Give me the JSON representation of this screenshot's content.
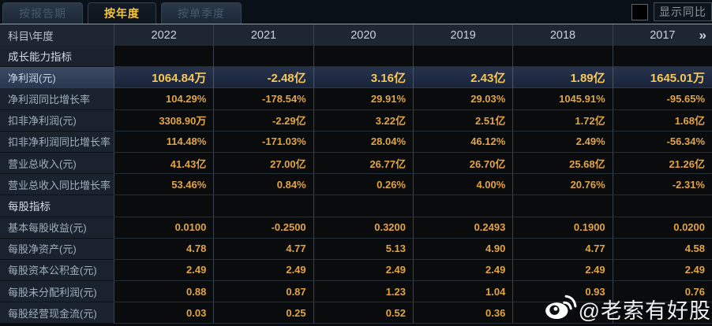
{
  "tabs": [
    {
      "label": "按报告期",
      "active": false
    },
    {
      "label": "按年度",
      "active": true
    },
    {
      "label": "按单季度",
      "active": false
    }
  ],
  "controls": {
    "show_yoy_label": "显示同比",
    "checkbox_checked": false
  },
  "table": {
    "corner_header": "科目\\年度",
    "year_columns": [
      "2022",
      "2021",
      "2020",
      "2019",
      "2018",
      "2017"
    ],
    "more_years_glyph": "»",
    "rows": [
      {
        "type": "section",
        "label": "成长能力指标",
        "values": [
          "",
          "",
          "",
          "",
          "",
          ""
        ]
      },
      {
        "type": "highlight",
        "label": "净利润(元)",
        "values": [
          "1064.84万",
          "-2.48亿",
          "3.16亿",
          "2.43亿",
          "1.89亿",
          "1645.01万"
        ]
      },
      {
        "type": "data",
        "label": "净利润同比增长率",
        "values": [
          "104.29%",
          "-178.54%",
          "29.91%",
          "29.03%",
          "1045.91%",
          "-95.65%"
        ]
      },
      {
        "type": "data",
        "label": "扣非净利润(元)",
        "values": [
          "3308.90万",
          "-2.29亿",
          "3.22亿",
          "2.51亿",
          "1.72亿",
          "1.68亿"
        ]
      },
      {
        "type": "data",
        "label": "扣非净利润同比增长率",
        "values": [
          "114.48%",
          "-171.03%",
          "28.04%",
          "46.12%",
          "2.49%",
          "-56.34%"
        ]
      },
      {
        "type": "data",
        "label": "营业总收入(元)",
        "values": [
          "41.43亿",
          "27.00亿",
          "26.77亿",
          "26.70亿",
          "25.68亿",
          "21.26亿"
        ]
      },
      {
        "type": "data",
        "label": "营业总收入同比增长率",
        "values": [
          "53.46%",
          "0.84%",
          "0.26%",
          "4.00%",
          "20.76%",
          "-2.31%"
        ]
      },
      {
        "type": "section",
        "label": "每股指标",
        "values": [
          "",
          "",
          "",
          "",
          "",
          ""
        ]
      },
      {
        "type": "data",
        "label": "基本每股收益(元)",
        "values": [
          "0.0100",
          "-0.2500",
          "0.3200",
          "0.2493",
          "0.1900",
          "0.0200"
        ]
      },
      {
        "type": "data",
        "label": "每股净资产(元)",
        "values": [
          "4.78",
          "4.77",
          "5.13",
          "4.90",
          "4.77",
          "4.58"
        ]
      },
      {
        "type": "data",
        "label": "每股资本公积金(元)",
        "values": [
          "2.49",
          "2.49",
          "2.49",
          "2.49",
          "2.49",
          "2.49"
        ]
      },
      {
        "type": "data",
        "label": "每股未分配利润(元)",
        "values": [
          "0.88",
          "0.87",
          "1.23",
          "1.04",
          "0.93",
          "0.76"
        ]
      },
      {
        "type": "data",
        "label": "每股经营现金流(元)",
        "values": [
          "0.03",
          "0.25",
          "0.52",
          "0.36",
          "",
          ""
        ]
      }
    ]
  },
  "watermark": {
    "handle": "@老索有好股",
    "icon": "weibo-icon"
  },
  "colors": {
    "value_gold": "#e2a544",
    "highlight_gold": "#f8c757",
    "active_tab_text": "#f4c53c",
    "header_bg": "#1d2631",
    "label_col_bg": "#19222d",
    "highlight_row_bg": "#26334b"
  }
}
